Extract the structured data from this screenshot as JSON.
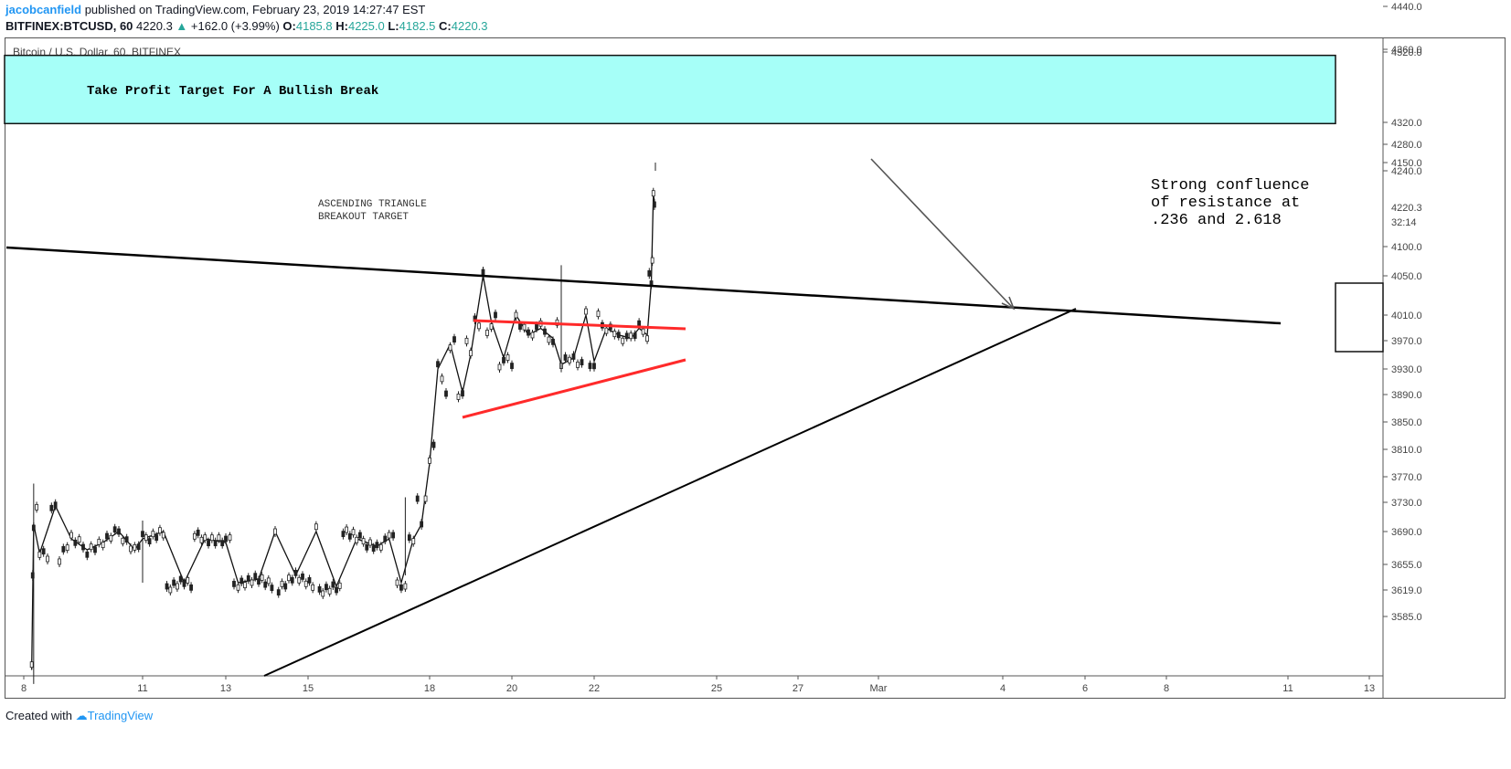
{
  "header": {
    "author": "jacobcanfield",
    "published_text": "published on TradingView.com, February 23, 2019 14:27:47 EST",
    "symbol": "BITFINEX:BTCUSD, 60",
    "last": "4220.3",
    "change": "+162.0 (+3.99%)",
    "o_label": "O:",
    "o": "4185.8",
    "h_label": "H:",
    "h": "4225.0",
    "l_label": "L:",
    "l": "4182.5",
    "c_label": "C:",
    "c": "4220.3"
  },
  "footer": {
    "created_with": "Created with",
    "brand": "TradingView"
  },
  "chart_data": {
    "type": "candlestick",
    "title": "Bitcoin / U.S. Dollar, 60, BITFINEX",
    "x_labels": [
      "8",
      "11",
      "13",
      "15",
      "18",
      "20",
      "22",
      "25",
      "27",
      "Mar",
      "4",
      "6",
      "8",
      "11",
      "13"
    ],
    "y_ticks": [
      4520.0,
      4440.0,
      4360.0,
      4320.0,
      4280.0,
      4240.0,
      4150.0,
      4100.0,
      4050.0,
      4010.0,
      3970.0,
      3930.0,
      3890.0,
      3850.0,
      3810.0,
      3770.0,
      3730.0,
      3690.0,
      3655.0,
      3619.0,
      3585.0
    ],
    "y_tick_labels": [
      "4520.0",
      "4440.0",
      "4360.0",
      "4320.0",
      "4280.0",
      "4240.0",
      "4150.0",
      "4100.0",
      "4050.0",
      "4010.0",
      "3970.0",
      "3930.0",
      "3890.0",
      "3850.0",
      "3810.0",
      "3770.0",
      "3730.0",
      "3690.0",
      "3655.0",
      "3619.0",
      "3585.0"
    ],
    "price_label": "4220.3",
    "countdown_label": "32:14",
    "price_path": [
      [
        8.2,
        3580
      ],
      [
        8.25,
        3760
      ],
      [
        8.4,
        3720
      ],
      [
        8.8,
        3735
      ],
      [
        9.2,
        3700
      ],
      [
        9.6,
        3715
      ],
      [
        10.0,
        3705
      ],
      [
        10.4,
        3690
      ],
      [
        10.8,
        3715
      ],
      [
        11.0,
        3700
      ],
      [
        11.5,
        3690
      ],
      [
        12.0,
        3680
      ],
      [
        12.5,
        3700
      ],
      [
        13.0,
        3705
      ],
      [
        13.3,
        3680
      ],
      [
        13.8,
        3675
      ],
      [
        14.2,
        3690
      ],
      [
        14.7,
        3670
      ],
      [
        15.2,
        3690
      ],
      [
        15.7,
        3685
      ],
      [
        16.2,
        3700
      ],
      [
        16.7,
        3710
      ],
      [
        17.0,
        3700
      ],
      [
        17.3,
        3680
      ],
      [
        17.6,
        3700
      ],
      [
        17.8,
        3760
      ],
      [
        18.0,
        3830
      ],
      [
        18.2,
        3930
      ],
      [
        18.5,
        3975
      ],
      [
        18.8,
        3965
      ],
      [
        19.0,
        3990
      ],
      [
        19.3,
        4050
      ],
      [
        19.5,
        4020
      ],
      [
        19.8,
        3995
      ],
      [
        20.1,
        4010
      ],
      [
        20.4,
        4040
      ],
      [
        20.7,
        4030
      ],
      [
        21.0,
        4045
      ],
      [
        21.2,
        4005
      ],
      [
        21.5,
        3995
      ],
      [
        21.8,
        4010
      ],
      [
        22.0,
        4000
      ],
      [
        22.3,
        4030
      ],
      [
        22.6,
        4040
      ],
      [
        22.9,
        4045
      ],
      [
        23.1,
        4030
      ],
      [
        23.3,
        4040
      ],
      [
        23.4,
        4060
      ],
      [
        23.45,
        4200
      ],
      [
        23.5,
        4220
      ]
    ],
    "price_spikes": [
      {
        "x": 8.25,
        "low": 3560,
        "high": 3780
      },
      {
        "x": 11.0,
        "low": 3680,
        "high": 3755
      },
      {
        "x": 17.4,
        "low": 3670,
        "high": 3800
      },
      {
        "x": 21.2,
        "low": 3935,
        "high": 4130
      },
      {
        "x": 23.5,
        "low": 4150,
        "high": 4240
      }
    ],
    "annotations": {
      "target_box": {
        "text": "Take Profit Target For A Bullish Break",
        "y_low": 4322,
        "y_high": 4370,
        "x_start": 7.0,
        "x_end": 12.2,
        "x_end_month": "Mar",
        "color": "#a6fff8"
      },
      "ascending_label": [
        "ASCENDING TRIANGLE",
        "BREAKOUT TARGET"
      ],
      "resistance_note": [
        "Strong confluence",
        "of resistance at",
        ".236 and 2.618"
      ],
      "lines": [
        {
          "name": "resistance-line",
          "from": [
            7.0,
            4200
          ],
          "to": [
            12.0,
            4080
          ],
          "color": "#000000"
        },
        {
          "name": "support-line",
          "from": [
            14.0,
            3570
          ],
          "to": [
            12.0,
            4100
          ],
          "color": "#000000"
        },
        {
          "name": "triangle-top",
          "from": [
            19.0,
            4085
          ],
          "to": [
            24.2,
            4070
          ],
          "color": "#ff2a2a"
        },
        {
          "name": "triangle-bottom",
          "from": [
            18.5,
            3935
          ],
          "to": [
            24.2,
            4020
          ],
          "color": "#ff2a2a"
        }
      ]
    }
  }
}
